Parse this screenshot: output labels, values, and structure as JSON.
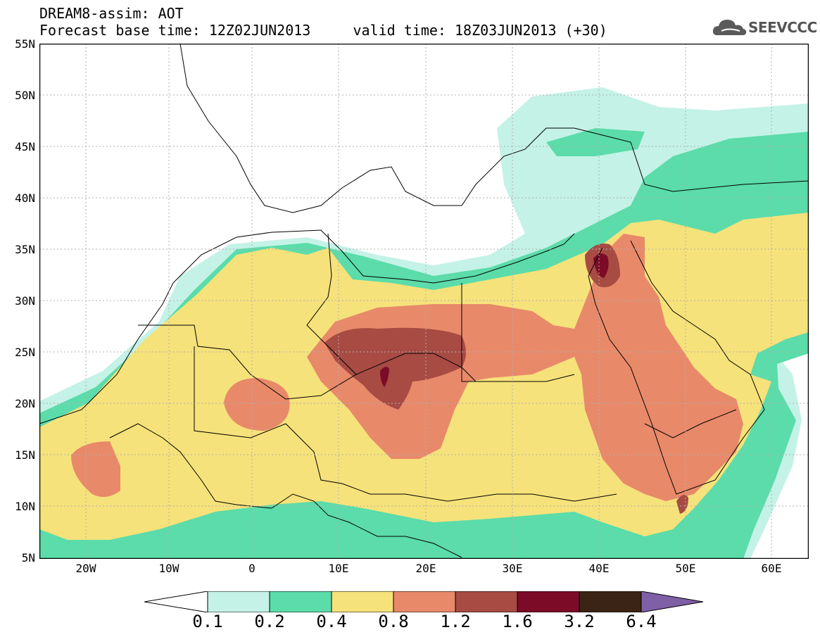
{
  "header": {
    "line1": "DREAM8-assim: AOT",
    "line2": "Forecast base time: 12Z02JUN2013     valid time: 18Z03JUN2013 (+30)"
  },
  "logo": {
    "text": "SEEVCCC",
    "icon": "cloud-icon"
  },
  "map": {
    "lat_labels": [
      "55N",
      "50N",
      "45N",
      "40N",
      "35N",
      "30N",
      "25N",
      "20N",
      "15N",
      "10N",
      "5N"
    ],
    "lon_labels": [
      "20W",
      "10W",
      "0",
      "10E",
      "20E",
      "30E",
      "40E",
      "50E",
      "60E"
    ]
  },
  "legend": {
    "labels": [
      "0.1",
      "0.2",
      "0.4",
      "0.8",
      "1.2",
      "1.6",
      "3.2",
      "6.4"
    ],
    "colors": [
      "#ffffff",
      "#c4f2e6",
      "#5bdcaa",
      "#f6e27a",
      "#e8896a",
      "#a74b43",
      "#7c0b28",
      "#3b2416",
      "#7f5fa6"
    ]
  },
  "colors": {
    "level_0_1": "#c4f2e6",
    "level_0_2": "#5bdcaa",
    "level_0_4": "#f6e27a",
    "level_0_8": "#e8896a",
    "level_1_2": "#a74b43",
    "level_1_6": "#7c0b28"
  }
}
